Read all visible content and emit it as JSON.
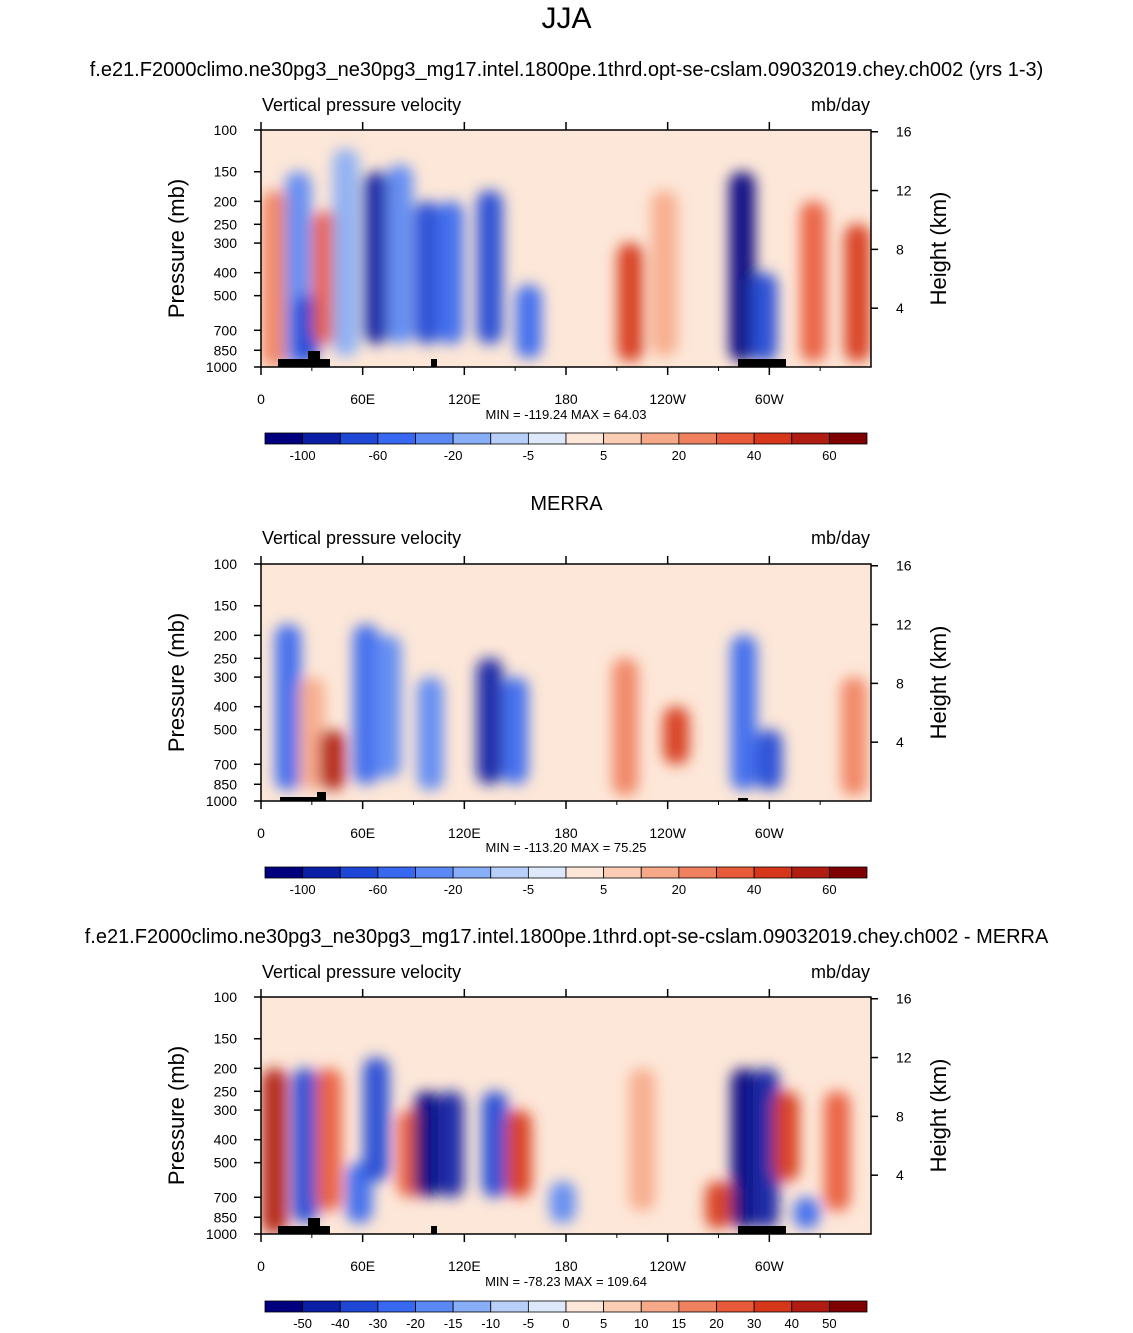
{
  "figure": {
    "season": "JJA"
  },
  "colorbars": {
    "abs": {
      "colors": [
        "#00007f",
        "#0a1fa5",
        "#1f47d6",
        "#3867f0",
        "#5a88f4",
        "#87aef6",
        "#b7cff9",
        "#dde9fb",
        "#fde7d8",
        "#fbcdb5",
        "#f6a989",
        "#f0815f",
        "#e85a39",
        "#d6361a",
        "#b01b12",
        "#7f0000"
      ],
      "labels": [
        "-100",
        "-60",
        "-20",
        "-5",
        "5",
        "20",
        "40",
        "60"
      ]
    },
    "diff": {
      "colors": [
        "#00007f",
        "#0a1fa5",
        "#1f47d6",
        "#3867f0",
        "#5a88f4",
        "#87aef6",
        "#b7cff9",
        "#dde9fb",
        "#fde7d8",
        "#fbcdb5",
        "#f6a989",
        "#f0815f",
        "#e85a39",
        "#d6361a",
        "#b01b12",
        "#7f0000"
      ],
      "labels": [
        "-50",
        "-40",
        "-30",
        "-20",
        "-15",
        "-10",
        "-5",
        "0",
        "5",
        "10",
        "15",
        "20",
        "30",
        "40",
        "50"
      ]
    }
  },
  "panels": [
    {
      "title": "f.e21.F2000climo.ne30pg3_ne30pg3_mg17.intel.1800pe.1thrd.opt-se-cslam.09032019.chey.ch002 (yrs 1-3)",
      "left_label": "Vertical pressure velocity",
      "right_label": "mb/day",
      "ylabel": "Pressure (mb)",
      "y2label": "Height (km)",
      "minmax": "MIN = -119.24  MAX =  64.03",
      "colorbar": "abs"
    },
    {
      "title": "MERRA",
      "left_label": "Vertical pressure velocity",
      "right_label": "mb/day",
      "ylabel": "Pressure (mb)",
      "y2label": "Height (km)",
      "minmax": "MIN = -113.20  MAX =  75.25",
      "colorbar": "abs"
    },
    {
      "title": "f.e21.F2000climo.ne30pg3_ne30pg3_mg17.intel.1800pe.1thrd.opt-se-cslam.09032019.chey.ch002 - MERRA",
      "left_label": "Vertical pressure velocity",
      "right_label": "mb/day",
      "ylabel": "Pressure (mb)",
      "y2label": "Height (km)",
      "minmax": "MIN = -78.23  MAX = 109.64",
      "colorbar": "diff"
    }
  ],
  "chart_data": [
    {
      "type": "heatmap",
      "title": "f.e21.F2000climo.ne30pg3_ne30pg3_mg17.intel.1800pe.1thrd.opt-se-cslam.09032019.chey.ch002 (yrs 1-3)",
      "xlabel": "",
      "ylabel": "Pressure (mb)",
      "y2label": "Height (km)",
      "units": "mb/day",
      "x_ticks": [
        "0",
        "60E",
        "120E",
        "180",
        "120W",
        "60W"
      ],
      "x_tick_values": [
        0,
        60,
        120,
        180,
        240,
        300
      ],
      "xlim": [
        0,
        360
      ],
      "y_ticks": [
        100,
        150,
        200,
        250,
        300,
        400,
        500,
        700,
        850,
        1000
      ],
      "y_scale": "log",
      "ylim": [
        1000,
        100
      ],
      "y2_ticks": [
        4,
        8,
        12,
        16
      ],
      "min": -119.24,
      "max": 64.03,
      "levels": [
        -120,
        -100,
        -80,
        -60,
        -40,
        -20,
        -10,
        -5,
        0,
        5,
        10,
        20,
        30,
        40,
        50,
        60,
        70
      ],
      "blobs": [
        {
          "lon": 8,
          "p_top": 180,
          "p_bot": 1000,
          "value": 22
        },
        {
          "lon": 22,
          "p_top": 150,
          "p_bot": 1000,
          "value": -30
        },
        {
          "lon": 27,
          "p_top": 500,
          "p_bot": 950,
          "value": -75
        },
        {
          "lon": 38,
          "p_top": 220,
          "p_bot": 800,
          "value": 38
        },
        {
          "lon": 50,
          "p_top": 120,
          "p_bot": 900,
          "value": -20
        },
        {
          "lon": 68,
          "p_top": 150,
          "p_bot": 800,
          "value": -90
        },
        {
          "lon": 82,
          "p_top": 140,
          "p_bot": 800,
          "value": -35
        },
        {
          "lon": 98,
          "p_top": 200,
          "p_bot": 800,
          "value": -80
        },
        {
          "lon": 112,
          "p_top": 200,
          "p_bot": 800,
          "value": -50
        },
        {
          "lon": 135,
          "p_top": 180,
          "p_bot": 800,
          "value": -75
        },
        {
          "lon": 158,
          "p_top": 450,
          "p_bot": 920,
          "value": -45
        },
        {
          "lon": 218,
          "p_top": 300,
          "p_bot": 950,
          "value": 42
        },
        {
          "lon": 238,
          "p_top": 180,
          "p_bot": 900,
          "value": 18
        },
        {
          "lon": 284,
          "p_top": 150,
          "p_bot": 950,
          "value": -110
        },
        {
          "lon": 297,
          "p_top": 400,
          "p_bot": 950,
          "value": -70
        },
        {
          "lon": 326,
          "p_top": 200,
          "p_bot": 950,
          "value": 32
        },
        {
          "lon": 352,
          "p_top": 250,
          "p_bot": 950,
          "value": 40
        }
      ]
    },
    {
      "type": "heatmap",
      "title": "MERRA",
      "xlabel": "",
      "ylabel": "Pressure (mb)",
      "y2label": "Height (km)",
      "units": "mb/day",
      "x_ticks": [
        "0",
        "60E",
        "120E",
        "180",
        "120W",
        "60W"
      ],
      "x_tick_values": [
        0,
        60,
        120,
        180,
        240,
        300
      ],
      "xlim": [
        0,
        360
      ],
      "y_ticks": [
        100,
        150,
        200,
        250,
        300,
        400,
        500,
        700,
        850,
        1000
      ],
      "y_scale": "log",
      "ylim": [
        1000,
        100
      ],
      "y2_ticks": [
        4,
        8,
        12,
        16
      ],
      "min": -113.2,
      "max": 75.25,
      "levels": [
        -120,
        -100,
        -80,
        -60,
        -40,
        -20,
        -10,
        -5,
        0,
        5,
        10,
        20,
        30,
        40,
        50,
        60,
        70
      ],
      "blobs": [
        {
          "lon": 16,
          "p_top": 180,
          "p_bot": 900,
          "value": -45
        },
        {
          "lon": 30,
          "p_top": 300,
          "p_bot": 900,
          "value": 18
        },
        {
          "lon": 42,
          "p_top": 500,
          "p_bot": 900,
          "value": 52
        },
        {
          "lon": 62,
          "p_top": 180,
          "p_bot": 850,
          "value": -50
        },
        {
          "lon": 75,
          "p_top": 200,
          "p_bot": 800,
          "value": -35
        },
        {
          "lon": 100,
          "p_top": 300,
          "p_bot": 900,
          "value": -40
        },
        {
          "lon": 135,
          "p_top": 250,
          "p_bot": 850,
          "value": -85
        },
        {
          "lon": 150,
          "p_top": 300,
          "p_bot": 850,
          "value": -60
        },
        {
          "lon": 215,
          "p_top": 250,
          "p_bot": 950,
          "value": 25
        },
        {
          "lon": 245,
          "p_top": 400,
          "p_bot": 700,
          "value": 42
        },
        {
          "lon": 285,
          "p_top": 200,
          "p_bot": 900,
          "value": -55
        },
        {
          "lon": 300,
          "p_top": 500,
          "p_bot": 900,
          "value": -65
        },
        {
          "lon": 350,
          "p_top": 300,
          "p_bot": 950,
          "value": 22
        }
      ]
    },
    {
      "type": "heatmap",
      "title": "f.e21.F2000climo.ne30pg3_ne30pg3_mg17.intel.1800pe.1thrd.opt-se-cslam.09032019.chey.ch002 - MERRA",
      "xlabel": "",
      "ylabel": "Pressure (mb)",
      "y2label": "Height (km)",
      "units": "mb/day",
      "x_ticks": [
        "0",
        "60E",
        "120E",
        "180",
        "120W",
        "60W"
      ],
      "x_tick_values": [
        0,
        60,
        120,
        180,
        240,
        300
      ],
      "xlim": [
        0,
        360
      ],
      "y_ticks": [
        100,
        150,
        200,
        250,
        300,
        400,
        500,
        700,
        850,
        1000
      ],
      "y_scale": "log",
      "ylim": [
        1000,
        100
      ],
      "y2_ticks": [
        4,
        8,
        12,
        16
      ],
      "min": -78.23,
      "max": 109.64,
      "levels": [
        -60,
        -50,
        -40,
        -30,
        -20,
        -15,
        -10,
        -5,
        0,
        5,
        10,
        15,
        20,
        30,
        40,
        50,
        60
      ],
      "blobs": [
        {
          "lon": 8,
          "p_top": 200,
          "p_bot": 1000,
          "value": 40
        },
        {
          "lon": 26,
          "p_top": 200,
          "p_bot": 900,
          "value": -35
        },
        {
          "lon": 40,
          "p_top": 200,
          "p_bot": 800,
          "value": 25
        },
        {
          "lon": 58,
          "p_top": 500,
          "p_bot": 900,
          "value": -30
        },
        {
          "lon": 68,
          "p_top": 180,
          "p_bot": 600,
          "value": -40
        },
        {
          "lon": 88,
          "p_top": 300,
          "p_bot": 700,
          "value": 28
        },
        {
          "lon": 98,
          "p_top": 250,
          "p_bot": 700,
          "value": -55
        },
        {
          "lon": 112,
          "p_top": 250,
          "p_bot": 700,
          "value": -50
        },
        {
          "lon": 138,
          "p_top": 250,
          "p_bot": 700,
          "value": -35
        },
        {
          "lon": 152,
          "p_top": 300,
          "p_bot": 700,
          "value": 30
        },
        {
          "lon": 178,
          "p_top": 600,
          "p_bot": 900,
          "value": -20
        },
        {
          "lon": 225,
          "p_top": 200,
          "p_bot": 800,
          "value": 12
        },
        {
          "lon": 270,
          "p_top": 600,
          "p_bot": 950,
          "value": 35
        },
        {
          "lon": 285,
          "p_top": 200,
          "p_bot": 950,
          "value": -65
        },
        {
          "lon": 298,
          "p_top": 200,
          "p_bot": 950,
          "value": -50
        },
        {
          "lon": 310,
          "p_top": 250,
          "p_bot": 600,
          "value": 32
        },
        {
          "lon": 322,
          "p_top": 700,
          "p_bot": 950,
          "value": -30
        },
        {
          "lon": 340,
          "p_top": 250,
          "p_bot": 800,
          "value": 25
        }
      ]
    }
  ]
}
